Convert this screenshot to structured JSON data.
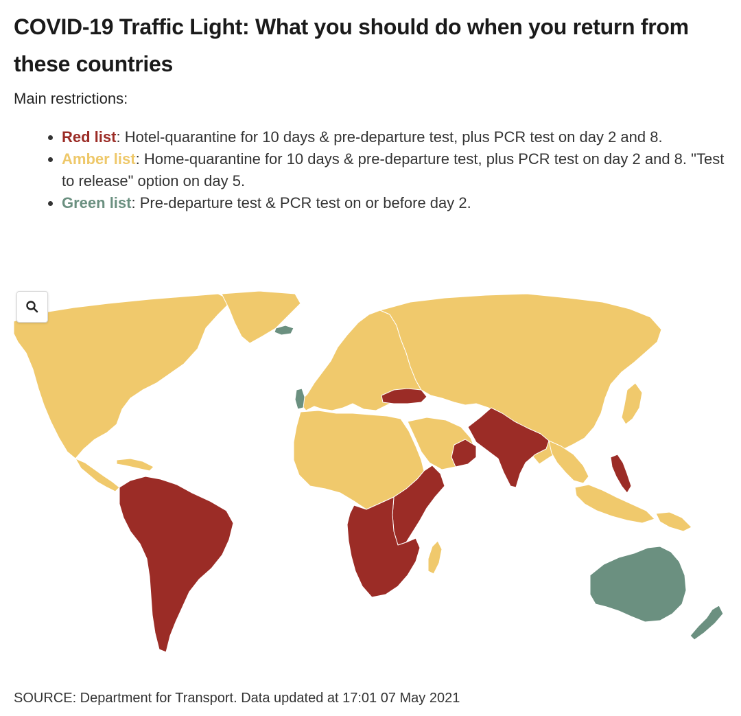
{
  "title": "COVID-19 Traffic Light: What you should do when you return from these countries",
  "subtitle": "Main restrictions:",
  "legend": [
    {
      "label": "Red list",
      "text": ": Hotel-quarantine for 10 days & pre-departure test, plus PCR test on day 2 and 8.",
      "color": "#9b2c26"
    },
    {
      "label": "Amber list",
      "text": ": Home-quarantine for 10 days & pre-departure test, plus PCR test on day 2 and 8. \"Test to release\" option on day 5.",
      "color": "#eec86a"
    },
    {
      "label": "Green list",
      "text": ": Pre-departure test & PCR test on or before day 2.",
      "color": "#6b9080"
    }
  ],
  "colors": {
    "red": "#9b2c26",
    "amber": "#f0c96c",
    "green": "#6b9080",
    "border": "#ffffff"
  },
  "map": {
    "zoom_icon": "search-icon",
    "regions": [
      {
        "name": "north-america",
        "status": "amber"
      },
      {
        "name": "greenland",
        "status": "amber"
      },
      {
        "name": "iceland",
        "status": "green"
      },
      {
        "name": "central-america",
        "status": "amber"
      },
      {
        "name": "caribbean",
        "status": "amber"
      },
      {
        "name": "south-america",
        "status": "red"
      },
      {
        "name": "europe",
        "status": "amber"
      },
      {
        "name": "portugal",
        "status": "green"
      },
      {
        "name": "russia-asia",
        "status": "amber"
      },
      {
        "name": "turkey",
        "status": "red"
      },
      {
        "name": "north-africa",
        "status": "amber"
      },
      {
        "name": "arabia",
        "status": "amber"
      },
      {
        "name": "oman",
        "status": "red"
      },
      {
        "name": "east-africa",
        "status": "red"
      },
      {
        "name": "southern-africa",
        "status": "red"
      },
      {
        "name": "madagascar",
        "status": "amber"
      },
      {
        "name": "india",
        "status": "red"
      },
      {
        "name": "southeast-asia",
        "status": "amber"
      },
      {
        "name": "japan",
        "status": "amber"
      },
      {
        "name": "philippines",
        "status": "red"
      },
      {
        "name": "indonesia",
        "status": "amber"
      },
      {
        "name": "papua-new-guinea",
        "status": "amber"
      },
      {
        "name": "australia",
        "status": "green"
      },
      {
        "name": "new-zealand",
        "status": "green"
      }
    ]
  },
  "source": "SOURCE: Department for Transport. Data updated at 17:01 07 May 2021"
}
